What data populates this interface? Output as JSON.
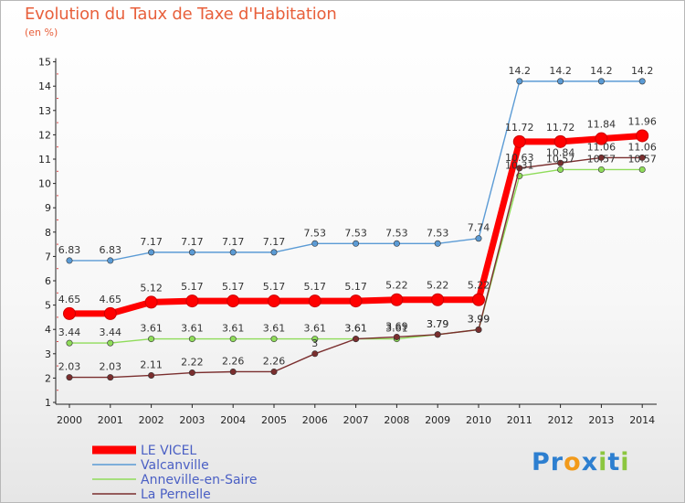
{
  "chart_data": {
    "type": "line",
    "title": "Evolution du Taux de Taxe d'Habitation",
    "subtitle": "(en %)",
    "x": [
      "2000",
      "2001",
      "2002",
      "2003",
      "2004",
      "2005",
      "2006",
      "2007",
      "2008",
      "2009",
      "2010",
      "2011",
      "2012",
      "2013",
      "2014"
    ],
    "ylim": [
      1,
      15
    ],
    "yticks": [
      1,
      2,
      3,
      4,
      5,
      6,
      7,
      8,
      9,
      10,
      11,
      12,
      13,
      14,
      15
    ],
    "grid": false,
    "legend_position": "bottom-left",
    "series": [
      {
        "name": "LE VICEL",
        "color": "#ff0000",
        "values": [
          4.65,
          4.65,
          5.12,
          5.17,
          5.17,
          5.17,
          5.17,
          5.17,
          5.22,
          5.22,
          5.22,
          11.72,
          11.72,
          11.84,
          11.96
        ],
        "labels": [
          "4.65",
          "4.65",
          "5.12",
          "5.17",
          "5.17",
          "5.17",
          "5.17",
          "5.17",
          "5.22",
          "5.22",
          "5.22",
          "11.72",
          "11.72",
          "11.84",
          "11.96"
        ]
      },
      {
        "name": "Valcanville",
        "color": "#5b9bd5",
        "values": [
          6.83,
          6.83,
          7.17,
          7.17,
          7.17,
          7.17,
          7.53,
          7.53,
          7.53,
          7.53,
          7.74,
          14.2,
          14.2,
          14.2,
          14.2
        ],
        "labels": [
          "6.83",
          "6.83",
          "7.17",
          "7.17",
          "7.17",
          "7.17",
          "7.53",
          "7.53",
          "7.53",
          "7.53",
          "7.74",
          "14.2",
          "14.2",
          "14.2",
          "14.2"
        ]
      },
      {
        "name": "Anneville-en-Saire",
        "color": "#8fdc5a",
        "values": [
          3.44,
          3.44,
          3.61,
          3.61,
          3.61,
          3.61,
          3.61,
          3.61,
          3.61,
          3.79,
          3.99,
          10.31,
          10.57,
          10.57,
          10.57
        ],
        "labels": [
          "3.44",
          "3.44",
          "3.61",
          "3.61",
          "3.61",
          "3.61",
          "3.61",
          "3.61",
          "3.61",
          "3.79",
          "3.99",
          "10.31",
          "10.57",
          "10.57",
          "10.57"
        ]
      },
      {
        "name": "La Pernelle",
        "color": "#7a2e2e",
        "values": [
          2.03,
          2.03,
          2.11,
          2.22,
          2.26,
          2.26,
          3,
          3.61,
          3.69,
          3.79,
          3.99,
          10.63,
          10.84,
          11.06,
          11.06
        ],
        "labels": [
          "2.03",
          "2.03",
          "2.11",
          "2.22",
          "2.26",
          "2.26",
          "3",
          "3.61",
          "3.69",
          "3.79",
          "3.99",
          "10.63",
          "10.84",
          "11.06",
          "11.06"
        ]
      }
    ]
  },
  "logo": {
    "p": "P",
    "r": "r",
    "o": "o",
    "x": "x",
    "i": "i",
    "t": "t",
    "i2": "i"
  }
}
